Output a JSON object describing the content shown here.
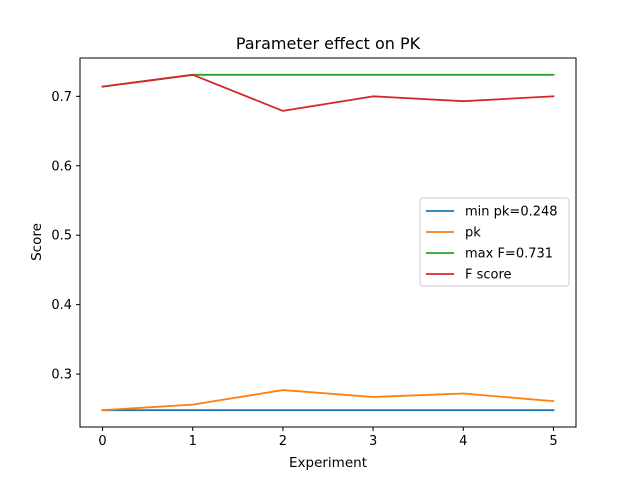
{
  "chart_data": {
    "type": "line",
    "title": "Parameter effect on PK",
    "xlabel": "Experiment",
    "ylabel": "Score",
    "x": [
      0,
      1,
      2,
      3,
      4,
      5
    ],
    "xticks": [
      "0",
      "1",
      "2",
      "3",
      "4",
      "5"
    ],
    "yticks": [
      "0.3",
      "0.4",
      "0.5",
      "0.6",
      "0.7"
    ],
    "xlim": [
      -0.25,
      5.25
    ],
    "ylim": [
      0.2238,
      0.7552
    ],
    "grid": false,
    "legend_position": "center-right",
    "series": [
      {
        "name": "min pk=0.248",
        "color": "#1f77b4",
        "values": [
          0.248,
          0.248,
          0.248,
          0.248,
          0.248,
          0.248
        ]
      },
      {
        "name": "pk",
        "color": "#ff7f0e",
        "values": [
          0.248,
          0.256,
          0.277,
          0.267,
          0.272,
          0.261
        ]
      },
      {
        "name": "max F=0.731",
        "color": "#2ca02c",
        "values": [
          0.714,
          0.731,
          0.731,
          0.731,
          0.731,
          0.731
        ]
      },
      {
        "name": "F score",
        "color": "#d62728",
        "values": [
          0.714,
          0.731,
          0.679,
          0.7,
          0.693,
          0.7
        ]
      }
    ]
  }
}
